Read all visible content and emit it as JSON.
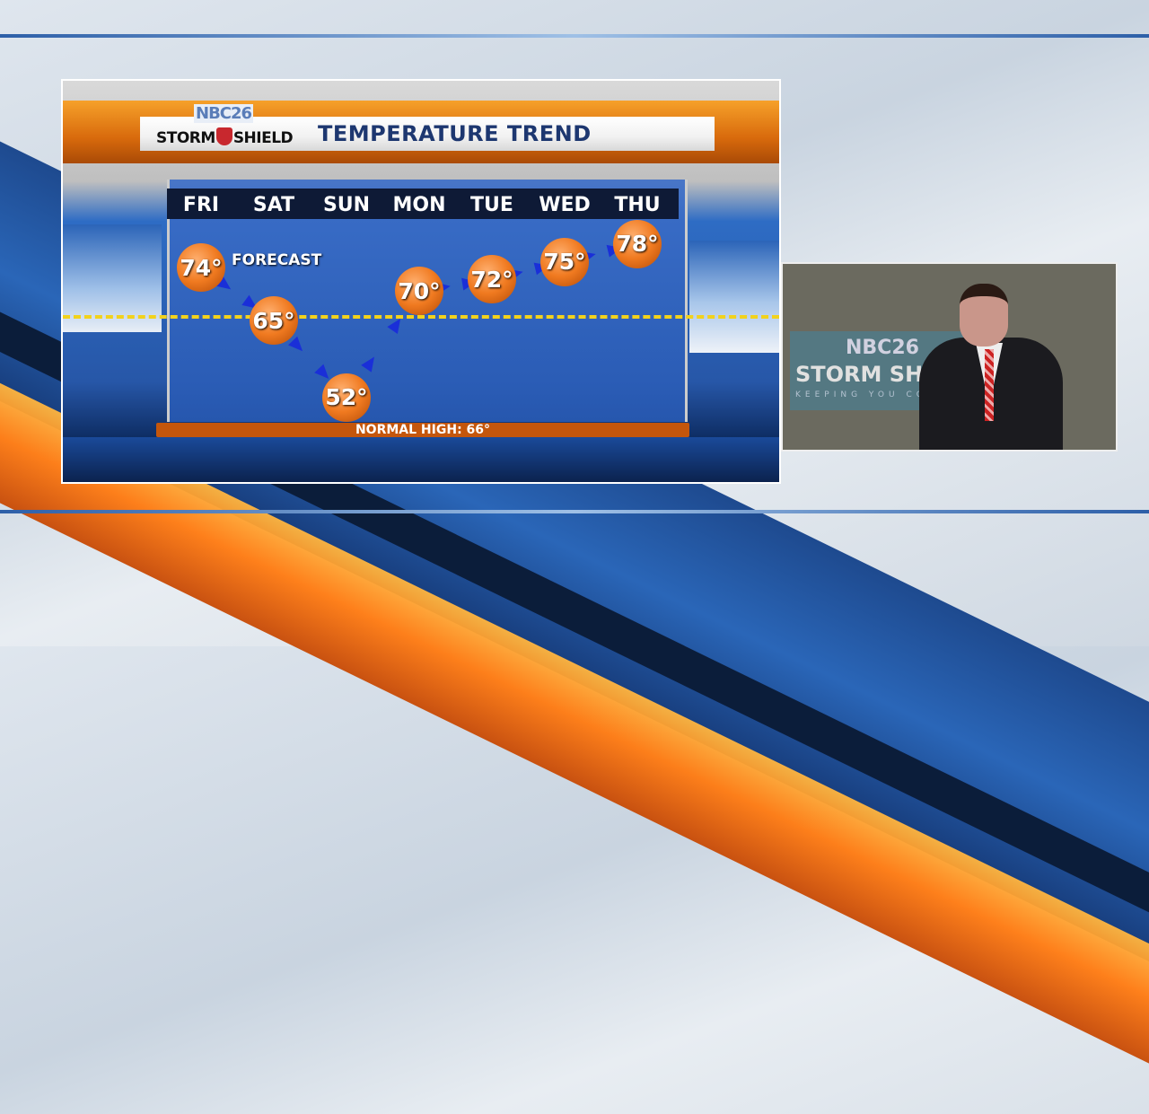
{
  "brand": {
    "station": "NBC26",
    "show": "STORM SHIELD",
    "tagline": "KEEPING YOU CO"
  },
  "graphic": {
    "title": "TEMPERATURE TREND",
    "forecast_label": "FORECAST",
    "normal_label": "NORMAL HIGH: 66°"
  },
  "chart_data": {
    "type": "line",
    "title": "TEMPERATURE TREND",
    "categories": [
      "FRI",
      "SAT",
      "SUN",
      "MON",
      "TUE",
      "WED",
      "THU"
    ],
    "values": [
      74,
      65,
      52,
      70,
      72,
      75,
      78
    ],
    "value_labels": [
      "74°",
      "65°",
      "52°",
      "70°",
      "72°",
      "75°",
      "78°"
    ],
    "reference_line": {
      "label": "NORMAL HIGH: 66°",
      "value": 66,
      "color": "#f2d21c"
    },
    "marker_color": "#f07a20",
    "arrow_color": "#1a2fd8"
  },
  "colors": {
    "accent_orange": "#e0700e",
    "title_navy": "#1d3770",
    "shield_red": "#c8282e"
  }
}
